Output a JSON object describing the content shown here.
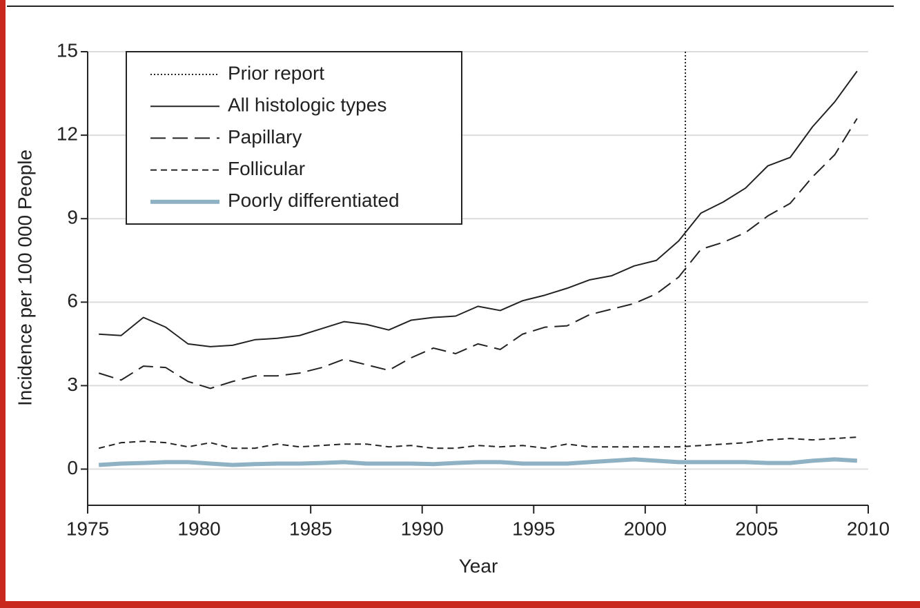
{
  "chart_data": {
    "type": "line",
    "x_label": "Year",
    "y_label": "Incidence per 100 000 People",
    "x": [
      1975.5,
      1976.5,
      1977.5,
      1978.5,
      1979.5,
      1980.5,
      1981.5,
      1982.5,
      1983.5,
      1984.5,
      1985.5,
      1986.5,
      1987.5,
      1988.5,
      1989.5,
      1990.5,
      1991.5,
      1992.5,
      1993.5,
      1994.5,
      1995.5,
      1996.5,
      1997.5,
      1998.5,
      1999.5,
      2000.5,
      2001.5,
      2002.5,
      2003.5,
      2004.5,
      2005.5,
      2006.5,
      2007.5,
      2008.5,
      2009.5
    ],
    "series": [
      {
        "name": "All histologic types",
        "color": "#222222",
        "style": "solid",
        "width": 2,
        "values": [
          4.85,
          4.8,
          5.45,
          5.1,
          4.5,
          4.4,
          4.45,
          4.65,
          4.7,
          4.8,
          5.05,
          5.3,
          5.2,
          5.0,
          5.35,
          5.45,
          5.5,
          5.85,
          5.7,
          6.05,
          6.25,
          6.5,
          6.8,
          6.95,
          7.3,
          7.5,
          8.2,
          9.2,
          9.6,
          10.1,
          10.9,
          11.2,
          12.3,
          13.2,
          14.3
        ]
      },
      {
        "name": "Papillary",
        "color": "#222222",
        "style": "long-dash",
        "width": 2,
        "values": [
          3.45,
          3.2,
          3.7,
          3.65,
          3.15,
          2.9,
          3.15,
          3.35,
          3.35,
          3.45,
          3.65,
          3.95,
          3.75,
          3.55,
          4.0,
          4.35,
          4.15,
          4.5,
          4.3,
          4.85,
          5.1,
          5.15,
          5.55,
          5.75,
          5.95,
          6.3,
          6.9,
          7.9,
          8.15,
          8.5,
          9.1,
          9.55,
          10.5,
          11.3,
          12.6
        ]
      },
      {
        "name": "Follicular",
        "color": "#222222",
        "style": "short-dash",
        "width": 2,
        "values": [
          0.75,
          0.95,
          1.0,
          0.95,
          0.8,
          0.95,
          0.75,
          0.75,
          0.9,
          0.8,
          0.85,
          0.9,
          0.9,
          0.8,
          0.85,
          0.75,
          0.75,
          0.85,
          0.8,
          0.85,
          0.75,
          0.9,
          0.8,
          0.8,
          0.8,
          0.8,
          0.8,
          0.85,
          0.9,
          0.95,
          1.05,
          1.1,
          1.05,
          1.1,
          1.15
        ]
      },
      {
        "name": "Poorly differentiated",
        "color": "#8fb1c4",
        "style": "solid",
        "width": 6,
        "values": [
          0.15,
          0.2,
          0.22,
          0.25,
          0.25,
          0.2,
          0.15,
          0.18,
          0.2,
          0.2,
          0.22,
          0.25,
          0.2,
          0.2,
          0.2,
          0.18,
          0.22,
          0.25,
          0.25,
          0.2,
          0.2,
          0.2,
          0.25,
          0.3,
          0.35,
          0.3,
          0.25,
          0.25,
          0.25,
          0.25,
          0.22,
          0.22,
          0.3,
          0.35,
          0.3
        ]
      }
    ],
    "reference_lines": [
      {
        "name": "Prior report",
        "x": 2001.8,
        "style": "dotted",
        "color": "#222222"
      }
    ],
    "xlim": [
      1975,
      2010
    ],
    "xticks": [
      1975,
      1980,
      1985,
      1990,
      1995,
      2000,
      2005,
      2010
    ],
    "ylim": [
      -1.3,
      15
    ],
    "yticks": [
      0,
      3,
      6,
      9,
      12,
      15
    ],
    "grid": true,
    "legend": "upper left"
  }
}
